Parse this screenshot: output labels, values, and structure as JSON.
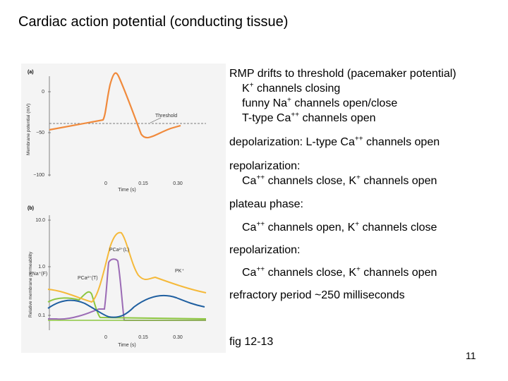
{
  "slide": {
    "title": "Cardiac action potential (conducting tissue)",
    "page_number": "11"
  },
  "figure": {
    "panel_a": {
      "label": "(a)",
      "ylabel": "Membrane potential (mV)",
      "ytick_0": "0",
      "ytick_1": "−50",
      "ytick_2": "−100",
      "xtick_0": "0",
      "xtick_1": "0.15",
      "xtick_2": "0.30",
      "xlabel": "Time (s)",
      "threshold_label": "Threshold",
      "line_color": "#f08a3c"
    },
    "panel_b": {
      "label": "(b)",
      "ylabel": "Relative membrane permeability",
      "ytick_0": "10.0",
      "ytick_1": "1.0",
      "ytick_2": "0.1",
      "xtick_0": "0",
      "xtick_1": "0.15",
      "xtick_2": "0.30",
      "xlabel": "Time (s)",
      "label_ca_l": "PCa²⁺(L)",
      "label_na_f": "PNa⁺(F)",
      "label_ca_t": "PCa²⁺(T)",
      "label_k": "PK⁺",
      "colors": {
        "ca_l": "#9b6bb5",
        "na_f": "#4a9a4a",
        "ca_t": "#8cc63f",
        "k": "#1f5fa0",
        "yellow": "#f5b93a"
      }
    }
  },
  "notes": {
    "l1": "RMP drifts to threshold (pacemaker potential)",
    "l2_a": "K",
    "l2_sup": "+",
    "l2_b": " channels closing",
    "l3_a": "funny Na",
    "l3_sup": "+",
    "l3_b": " channels open/close",
    "l4_a": "T-type Ca",
    "l4_sup": "++",
    "l4_b": " channels open",
    "l5_a": "depolarization: L-type Ca",
    "l5_sup": "++",
    "l5_b": " channels open",
    "l6": "repolarization:",
    "l7_a": "Ca",
    "l7_sup1": "++",
    "l7_b": " channels close, K",
    "l7_sup2": "+",
    "l7_c": " channels open",
    "l8": "plateau phase:",
    "l9_a": "Ca",
    "l9_sup1": "++",
    "l9_b": " channels open, K",
    "l9_sup2": "+",
    "l9_c": " channels close",
    "l10": "repolarization:",
    "l11_a": "Ca",
    "l11_sup1": "++",
    "l11_b": " channels close, K",
    "l11_sup2": "+",
    "l11_c": " channels open",
    "l12": "refractory period ~250 milliseconds",
    "l13": "fig 12-13"
  }
}
